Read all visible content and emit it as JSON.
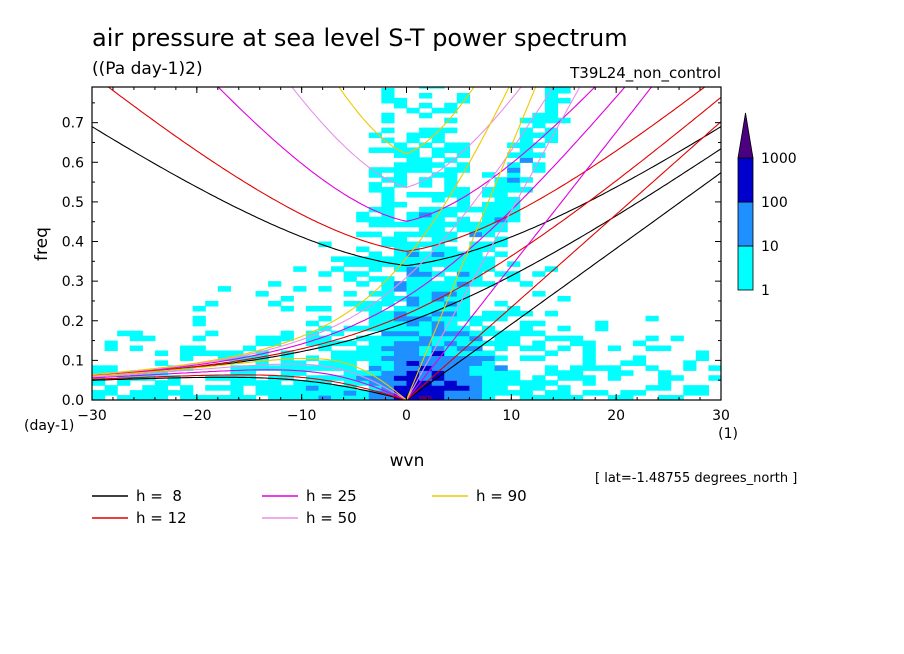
{
  "chart_data": {
    "type": "heatmap",
    "title": "air pressure at sea level S-T power spectrum",
    "subtitle": "((Pa day-1)2)",
    "run_label": "T39L24_non_control",
    "xlabel": "wvn",
    "ylabel": "freq",
    "x_unit": "(1)",
    "y_unit": "(day-1)",
    "xlim": [
      -30,
      30
    ],
    "ylim": [
      0,
      0.79
    ],
    "xticks": [
      -30,
      -20,
      -10,
      0,
      10,
      20,
      30
    ],
    "yticks": [
      0.0,
      0.1,
      0.2,
      0.3,
      0.4,
      0.5,
      0.6,
      0.7
    ],
    "colorbar": {
      "levels": [
        1,
        10,
        100,
        1000
      ],
      "colors": [
        "#00ffff",
        "#1e90ff",
        "#0000cd",
        "#4b0082"
      ]
    },
    "location_note": "[ lat=-1.48755 degrees_north ]",
    "dispersion_curves": [
      {
        "h": 8,
        "label": "h =  8",
        "color": "#000000"
      },
      {
        "h": 12,
        "label": "h = 12",
        "color": "#e00000"
      },
      {
        "h": 25,
        "label": "h = 25",
        "color": "#e000e0"
      },
      {
        "h": 50,
        "label": "h = 50",
        "color": "#e890e8"
      },
      {
        "h": 90,
        "label": "h = 90",
        "color": "#f0c800"
      }
    ]
  }
}
